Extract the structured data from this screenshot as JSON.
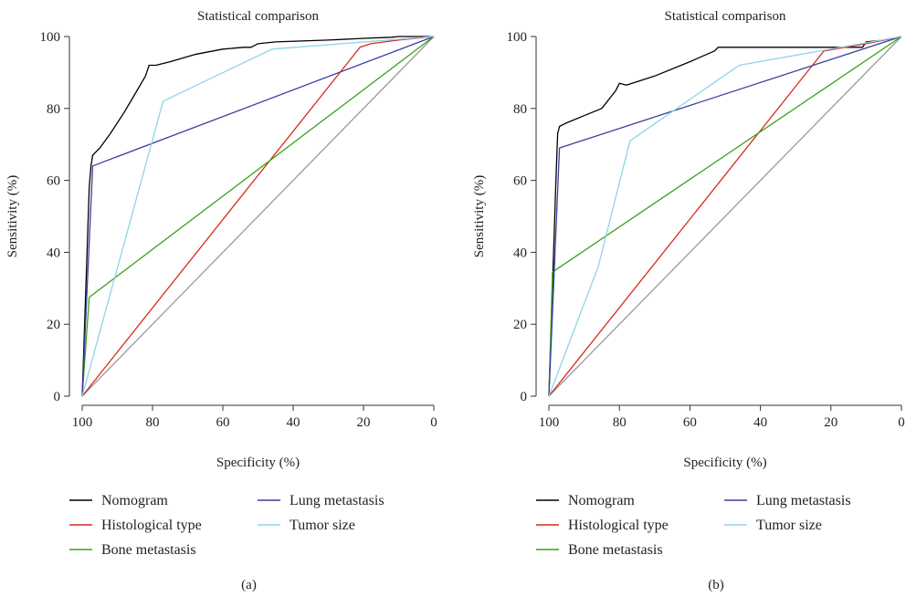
{
  "chart_data": [
    {
      "type": "line",
      "title": "Statistical comparison",
      "panel_label": "(a)",
      "xlabel": "Specificity (%)",
      "ylabel": "Sensitivity (%)",
      "xlim": [
        100,
        0
      ],
      "ylim": [
        0,
        100
      ],
      "x_ticks": [
        100,
        80,
        60,
        40,
        20,
        0
      ],
      "y_ticks": [
        0,
        20,
        40,
        60,
        80,
        100
      ],
      "legend_columns": [
        [
          "Nomogram",
          "Histological type",
          "Bone metastasis"
        ],
        [
          "Lung metastasis",
          "Tumor size"
        ]
      ],
      "series": [
        {
          "name": "Nomogram",
          "color": "#000000",
          "x": [
            100,
            98,
            97.5,
            97,
            95,
            92,
            88,
            85,
            82,
            81,
            80,
            79,
            75,
            68,
            60,
            54,
            52,
            50,
            45,
            30,
            20,
            12,
            10,
            5,
            0
          ],
          "y": [
            0,
            58,
            64,
            67,
            69,
            73,
            79,
            84,
            89,
            92,
            92,
            92,
            93,
            95,
            96.5,
            97,
            97,
            98,
            98.5,
            99,
            99.5,
            99.8,
            100,
            100,
            100
          ]
        },
        {
          "name": "Histological type",
          "color": "#d62a1e",
          "x": [
            100,
            21,
            18,
            10,
            0
          ],
          "y": [
            0,
            97,
            98,
            99,
            100
          ]
        },
        {
          "name": "Bone metastasis",
          "color": "#3aa11a",
          "x": [
            100,
            98,
            0
          ],
          "y": [
            0,
            27.5,
            100
          ]
        },
        {
          "name": "Lung metastasis",
          "color": "#3b3f9e",
          "x": [
            100,
            97,
            0
          ],
          "y": [
            0,
            64,
            100
          ]
        },
        {
          "name": "Tumor size",
          "color": "#8fd3e8",
          "x": [
            100,
            77,
            46,
            0
          ],
          "y": [
            0,
            82,
            96.5,
            100
          ]
        },
        {
          "name": "",
          "color": "#9a9a9a",
          "x": [
            100,
            0
          ],
          "y": [
            0,
            100
          ]
        }
      ]
    },
    {
      "type": "line",
      "title": "Statistical comparison",
      "panel_label": "(b)",
      "xlabel": "Specificity (%)",
      "ylabel": "Sensitivity (%)",
      "xlim": [
        100,
        0
      ],
      "ylim": [
        0,
        100
      ],
      "x_ticks": [
        100,
        80,
        60,
        40,
        20,
        0
      ],
      "y_ticks": [
        0,
        20,
        40,
        60,
        80,
        100
      ],
      "legend_columns": [
        [
          "Nomogram",
          "Histological type",
          "Bone metastasis"
        ],
        [
          "Lung metastasis",
          "Tumor size"
        ]
      ],
      "series": [
        {
          "name": "Nomogram",
          "color": "#000000",
          "x": [
            100,
            98,
            97.5,
            97,
            95,
            90,
            85,
            81,
            80,
            78,
            70,
            60,
            53,
            52,
            40,
            20,
            11,
            10,
            5,
            0
          ],
          "y": [
            0,
            60,
            73,
            75,
            76,
            78,
            80,
            85,
            87,
            86.5,
            89,
            93,
            96,
            97,
            97,
            97,
            97,
            98.5,
            99,
            100
          ]
        },
        {
          "name": "Histological type",
          "color": "#d62a1e",
          "x": [
            100,
            22,
            10,
            0
          ],
          "y": [
            0,
            96,
            98,
            100
          ]
        },
        {
          "name": "Bone metastasis",
          "color": "#3aa11a",
          "x": [
            100,
            99,
            0
          ],
          "y": [
            0,
            34.5,
            100
          ]
        },
        {
          "name": "Lung metastasis",
          "color": "#3b3f9e",
          "x": [
            100,
            97,
            0
          ],
          "y": [
            0,
            69,
            100
          ]
        },
        {
          "name": "Tumor size",
          "color": "#8fd3e8",
          "x": [
            100,
            86,
            77,
            46,
            0
          ],
          "y": [
            0,
            36,
            71,
            92,
            100
          ]
        },
        {
          "name": "",
          "color": "#9a9a9a",
          "x": [
            100,
            0
          ],
          "y": [
            0,
            100
          ]
        }
      ]
    }
  ]
}
